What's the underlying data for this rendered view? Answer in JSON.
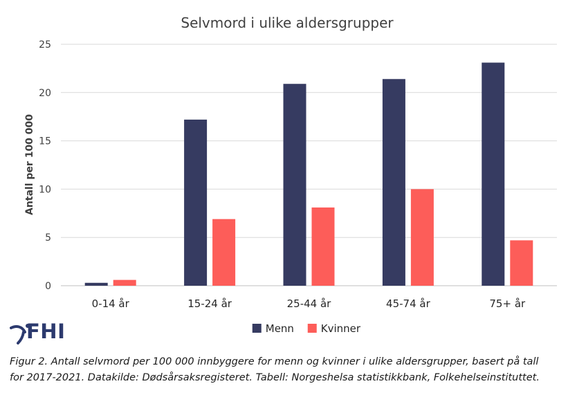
{
  "chart_data": {
    "type": "bar",
    "title": "Selvmord i ulike aldersgrupper",
    "ylabel": "Antall per 100 000",
    "xlabel": "",
    "categories": [
      "0-14 år",
      "15-24 år",
      "25-44 år",
      "45-74 år",
      "75+ år"
    ],
    "series": [
      {
        "name": "Menn",
        "color": "#363b61",
        "values": [
          0.3,
          17.2,
          20.9,
          21.4,
          23.1
        ]
      },
      {
        "name": "Kvinner",
        "color": "#fd5d59",
        "values": [
          0.6,
          6.9,
          8.1,
          10.0,
          4.7
        ]
      }
    ],
    "ylim": [
      0,
      25
    ],
    "yticks": [
      "0",
      "5",
      "10",
      "15",
      "20",
      "25"
    ],
    "grid": true,
    "legend": "bottom"
  },
  "logo": {
    "text": "FHI",
    "icon": "fhi-logo-icon"
  },
  "caption": {
    "line1": "Figur 2.  Antall selvmord per 100 000 innbyggere for menn og kvinner i ulike aldersgrupper, basert på tall",
    "line2": "for 2017-2021. Datakilde: Dødsårsaksregisteret. Tabell: Norgeshelsa statistikkbank, Folkehelseinstituttet."
  }
}
